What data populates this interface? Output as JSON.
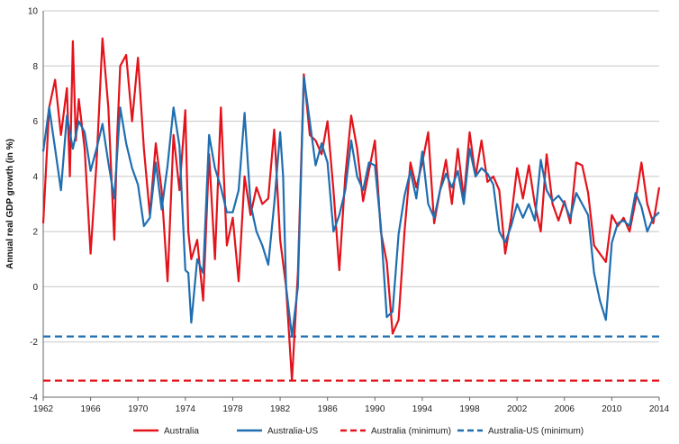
{
  "chart_data": {
    "type": "line",
    "title": "",
    "xlabel": "",
    "ylabel": "Annual real GDP growth (in %)",
    "xlim": [
      1962,
      2014
    ],
    "ylim": [
      -4,
      10
    ],
    "x_ticks": [
      1962,
      1966,
      1970,
      1974,
      1978,
      1982,
      1986,
      1990,
      1994,
      1998,
      2002,
      2006,
      2010,
      2014
    ],
    "y_ticks": [
      -4,
      -2,
      0,
      2,
      4,
      6,
      8,
      10
    ],
    "grid": "horizontal",
    "legend_position": "bottom",
    "colors": {
      "australia": "#e3131b",
      "australia_us": "#1f6eb0",
      "gridline": "#c8c8c8",
      "axis": "#666666"
    },
    "series": [
      {
        "name": "Australia",
        "style": "solid",
        "color": "#e3131b",
        "x": [
          1962,
          1962.5,
          1963,
          1963.5,
          1964,
          1964.25,
          1964.5,
          1964.75,
          1965,
          1965.5,
          1966,
          1966.5,
          1967,
          1967.5,
          1968,
          1968.25,
          1968.5,
          1969,
          1969.5,
          1970,
          1970.5,
          1971,
          1971.5,
          1972,
          1972.5,
          1973,
          1973.5,
          1974,
          1974.25,
          1974.5,
          1975,
          1975.5,
          1976,
          1976.5,
          1977,
          1977.5,
          1978,
          1978.5,
          1979,
          1979.5,
          1980,
          1980.5,
          1981,
          1981.5,
          1982,
          1982.5,
          1983,
          1983.5,
          1984,
          1984.5,
          1985,
          1985.5,
          1986,
          1986.5,
          1987,
          1987.5,
          1988,
          1988.5,
          1989,
          1989.5,
          1990,
          1990.5,
          1991,
          1991.5,
          1992,
          1992.5,
          1993,
          1993.5,
          1994,
          1994.5,
          1995,
          1995.5,
          1996,
          1996.5,
          1997,
          1997.5,
          1998,
          1998.5,
          1999,
          1999.5,
          2000,
          2000.5,
          2001,
          2001.5,
          2002,
          2002.5,
          2003,
          2003.5,
          2004,
          2004.5,
          2005,
          2005.5,
          2006,
          2006.5,
          2007,
          2007.5,
          2008,
          2008.5,
          2009,
          2009.5,
          2010,
          2010.5,
          2011,
          2011.5,
          2012,
          2012.5,
          2013,
          2013.5,
          2014
        ],
        "values": [
          2.3,
          6.5,
          7.5,
          5.5,
          7.2,
          4.0,
          8.9,
          5.3,
          6.8,
          5.0,
          1.2,
          4.5,
          9.0,
          6.5,
          1.7,
          5.5,
          8.0,
          8.4,
          6.0,
          8.3,
          5.0,
          2.6,
          5.2,
          3.5,
          0.2,
          5.5,
          3.5,
          6.4,
          2.0,
          1.0,
          1.7,
          -0.5,
          4.8,
          1.0,
          6.5,
          1.5,
          2.5,
          0.2,
          4.0,
          2.6,
          3.6,
          3.0,
          3.2,
          5.7,
          1.7,
          0.0,
          -3.4,
          0.5,
          7.7,
          5.5,
          5.3,
          4.8,
          6.0,
          3.5,
          0.6,
          4.0,
          6.2,
          5.0,
          3.1,
          4.2,
          5.3,
          2.0,
          0.9,
          -1.7,
          -1.2,
          2.0,
          4.5,
          3.6,
          4.5,
          5.6,
          2.3,
          3.5,
          4.6,
          3.0,
          5.0,
          3.2,
          5.6,
          4.0,
          5.3,
          3.8,
          4.0,
          3.5,
          1.2,
          2.5,
          4.3,
          3.2,
          4.4,
          3.0,
          2.0,
          4.8,
          3.0,
          2.4,
          3.1,
          2.3,
          4.5,
          4.4,
          3.4,
          1.5,
          1.2,
          0.9,
          2.6,
          2.2,
          2.5,
          2.0,
          3.1,
          4.5,
          3.0,
          2.3,
          3.6
        ]
      },
      {
        "name": "Australia-US",
        "style": "solid",
        "color": "#1f6eb0",
        "x": [
          1962,
          1962.5,
          1963,
          1963.5,
          1964,
          1964.5,
          1965,
          1965.5,
          1966,
          1966.5,
          1967,
          1967.5,
          1968,
          1968.5,
          1969,
          1969.5,
          1970,
          1970.5,
          1971,
          1971.5,
          1972,
          1972.5,
          1973,
          1973.5,
          1974,
          1974.25,
          1974.5,
          1975,
          1975.5,
          1976,
          1976.5,
          1977,
          1977.5,
          1978,
          1978.5,
          1979,
          1979.5,
          1980,
          1980.5,
          1981,
          1981.5,
          1982,
          1982.25,
          1982.5,
          1983,
          1983.5,
          1984,
          1984.5,
          1985,
          1985.5,
          1986,
          1986.5,
          1987,
          1987.5,
          1988,
          1988.5,
          1989,
          1989.5,
          1990,
          1990.5,
          1991,
          1991.5,
          1992,
          1992.5,
          1993,
          1993.5,
          1994,
          1994.5,
          1995,
          1995.5,
          1996,
          1996.5,
          1997,
          1997.5,
          1998,
          1998.5,
          1999,
          1999.5,
          2000,
          2000.5,
          2001,
          2001.5,
          2002,
          2002.5,
          2003,
          2003.5,
          2004,
          2004.5,
          2005,
          2005.5,
          2006,
          2006.5,
          2007,
          2007.5,
          2008,
          2008.5,
          2009,
          2009.5,
          2010,
          2010.5,
          2011,
          2011.5,
          2012,
          2012.5,
          2013,
          2013.5,
          2014
        ],
        "values": [
          4.9,
          6.5,
          5.0,
          3.5,
          6.2,
          5.0,
          6.0,
          5.6,
          4.2,
          5.0,
          5.9,
          4.5,
          3.2,
          6.5,
          5.2,
          4.3,
          3.7,
          2.2,
          2.5,
          4.5,
          2.8,
          4.4,
          6.5,
          5.1,
          0.6,
          0.5,
          -1.3,
          1.0,
          0.5,
          5.5,
          4.3,
          3.6,
          2.7,
          2.7,
          3.5,
          6.3,
          3.0,
          2.0,
          1.5,
          0.8,
          3.0,
          5.6,
          4.0,
          0.0,
          -1.8,
          0.0,
          7.6,
          6.0,
          4.4,
          5.2,
          4.5,
          2.0,
          2.6,
          3.5,
          5.3,
          4.0,
          3.5,
          4.5,
          4.4,
          2.2,
          -1.1,
          -0.9,
          1.9,
          3.3,
          4.2,
          3.2,
          4.9,
          3.0,
          2.5,
          3.5,
          4.1,
          3.6,
          4.2,
          3.0,
          5.0,
          4.0,
          4.3,
          4.1,
          3.7,
          2.0,
          1.6,
          2.2,
          3.0,
          2.5,
          3.0,
          2.4,
          4.6,
          3.5,
          3.1,
          3.3,
          3.0,
          2.5,
          3.4,
          3.0,
          2.6,
          0.5,
          -0.5,
          -1.2,
          1.6,
          2.3,
          2.4,
          2.2,
          3.4,
          2.9,
          2.0,
          2.5,
          2.7
        ]
      },
      {
        "name": "Australia (minimum)",
        "style": "dashed",
        "color": "#e3131b",
        "x": [
          1962,
          2014
        ],
        "values": [
          -3.4,
          -3.4
        ]
      },
      {
        "name": "Australia-US (minimum)",
        "style": "dashed",
        "color": "#1f6eb0",
        "x": [
          1962,
          2014
        ],
        "values": [
          -1.8,
          -1.8
        ]
      }
    ]
  }
}
